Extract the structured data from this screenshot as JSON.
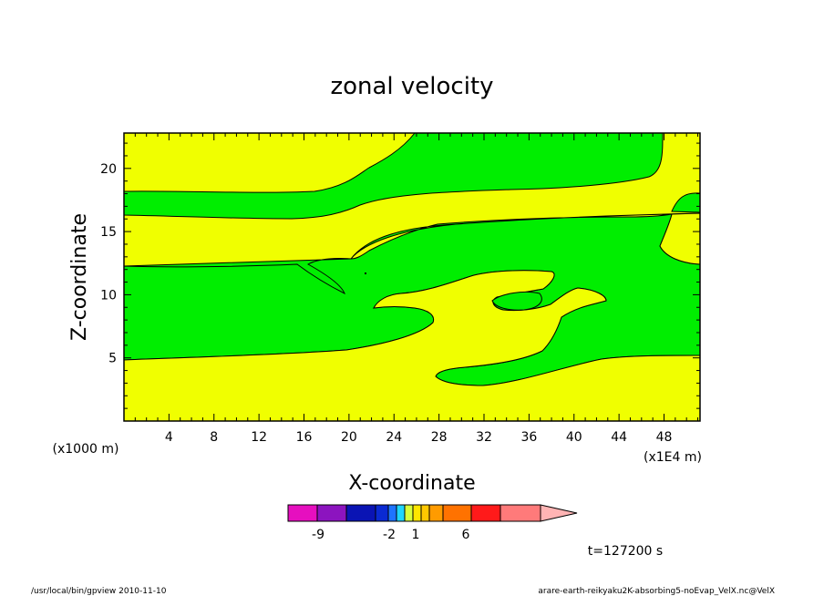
{
  "chart_data": {
    "type": "contour",
    "title": "zonal velocity",
    "xlabel": "X-coordinate",
    "ylabel": "Z-coordinate",
    "x_unit_label": "(x1E4 m)",
    "y_unit_label": "(x1000 m)",
    "xlim": [
      0,
      51.2
    ],
    "ylim": [
      0,
      22.8
    ],
    "x_ticks": [
      4,
      8,
      12,
      16,
      20,
      24,
      28,
      32,
      36,
      40,
      44,
      48
    ],
    "y_ticks": [
      5,
      10,
      15,
      20
    ],
    "colors": {
      "positive_region": "#f0ff00",
      "negative_region": "#00ee00"
    },
    "colorbar": {
      "colors": [
        "#e60fbf",
        "#8c14bf",
        "#0a14b4",
        "#0a2ad2",
        "#1e74ff",
        "#1fd6ff",
        "#d8ff3c",
        "#ffe600",
        "#ffc800",
        "#ff9b00",
        "#ff7200",
        "#ff1a1a",
        "#ff7a7a",
        "#ffb4b4"
      ],
      "tick_labels": [
        "-9",
        "-2",
        "1",
        "6"
      ]
    },
    "time_label": "t=127200 s"
  },
  "footer": {
    "left": "/usr/local/bin/gpview   2010-11-10",
    "right": "arare-earth-reikyaku2K-absorbing5-noEvap_VelX.nc@VelX"
  }
}
